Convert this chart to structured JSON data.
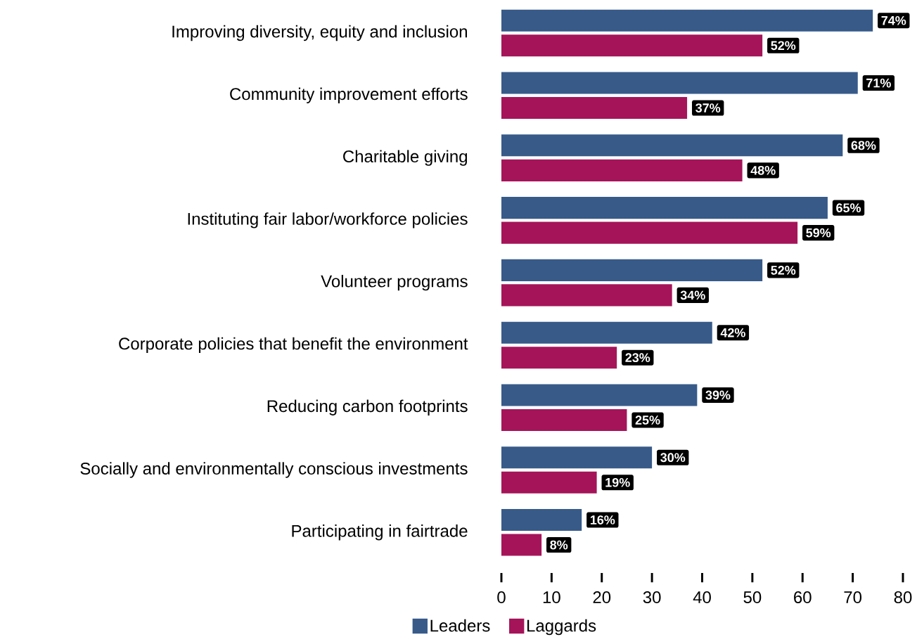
{
  "chart_data": {
    "type": "bar",
    "orientation": "horizontal",
    "categories": [
      "Improving diversity, equity and inclusion",
      "Community improvement efforts",
      "Charitable giving",
      "Instituting fair labor/workforce policies",
      "Volunteer programs",
      "Corporate policies that benefit the environment",
      "Reducing carbon footprints",
      "Socially and environmentally conscious investments",
      "Participating in fairtrade"
    ],
    "series": [
      {
        "name": "Leaders",
        "color": "#375a89",
        "values": [
          74,
          71,
          68,
          65,
          52,
          42,
          39,
          30,
          16
        ],
        "value_labels": [
          "74%",
          "71%",
          "68%",
          "65%",
          "52%",
          "42%",
          "39%",
          "30%",
          "16%"
        ]
      },
      {
        "name": "Laggards",
        "color": "#a51459",
        "values": [
          52,
          37,
          48,
          59,
          34,
          23,
          25,
          19,
          8
        ],
        "value_labels": [
          "52%",
          "37%",
          "48%",
          "59%",
          "34%",
          "23%",
          "25%",
          "19%",
          "8%"
        ]
      }
    ],
    "xlim": [
      0,
      80
    ],
    "xticks": [
      0,
      10,
      20,
      30,
      40,
      50,
      60,
      70,
      80
    ],
    "legend": "bottom"
  }
}
